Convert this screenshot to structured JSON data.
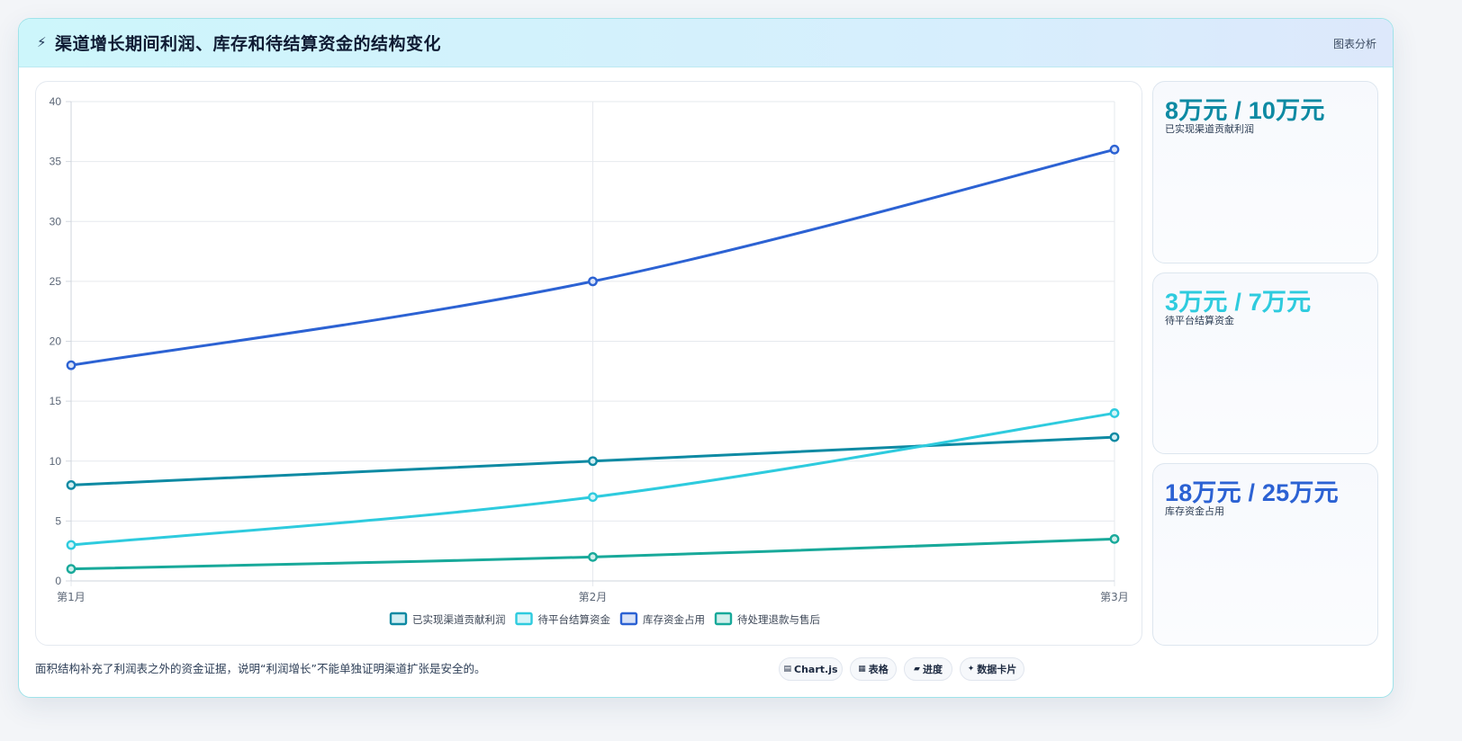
{
  "header": {
    "icon": "lightning-icon",
    "title": "渠道增长期间利润、库存和待结算资金的结构变化",
    "tag": "图表分析"
  },
  "chart_data": {
    "type": "line",
    "categories": [
      "第1月",
      "第2月",
      "第3月"
    ],
    "ylim": [
      0,
      40
    ],
    "yticks": [
      0,
      5,
      10,
      15,
      20,
      25,
      30,
      35,
      40
    ],
    "grid": true,
    "legend_position": "bottom",
    "series": [
      {
        "name": "已实现渠道贡献利润",
        "values": [
          8,
          10,
          12
        ],
        "color": "#0e8aa3",
        "fill": "#d2eef3"
      },
      {
        "name": "待平台结算资金",
        "values": [
          3,
          7,
          14
        ],
        "color": "#2ecbde",
        "fill": "#d6f5f9"
      },
      {
        "name": "库存资金占用",
        "values": [
          18,
          25,
          36
        ],
        "color": "#2c62d3",
        "fill": "#d9e3f7"
      },
      {
        "name": "待处理退款与售后",
        "values": [
          1,
          2,
          3.5
        ],
        "color": "#18a99a",
        "fill": "#d2efec"
      }
    ]
  },
  "kpis": [
    {
      "value": "8万元 / 10万元",
      "label": "已实现渠道贡献利润",
      "color": "#0e8aa3"
    },
    {
      "value": "3万元 / 7万元",
      "label": "待平台结算资金",
      "color": "#2ecbde"
    },
    {
      "value": "18万元 / 25万元",
      "label": "库存资金占用",
      "color": "#2c62d3"
    }
  ],
  "footer": {
    "note": "面积结构补充了利润表之外的资金证据，说明“利润增长”不能单独证明渠道扩张是安全的。"
  },
  "chips": [
    {
      "icon": "chart-icon",
      "glyph": "▤",
      "label": "Chart.js"
    },
    {
      "icon": "table-icon",
      "glyph": "▦",
      "label": "表格"
    },
    {
      "icon": "progress-icon",
      "glyph": "▰",
      "label": "进度"
    },
    {
      "icon": "sparkle-icon",
      "glyph": "✦",
      "label": "数据卡片"
    }
  ]
}
